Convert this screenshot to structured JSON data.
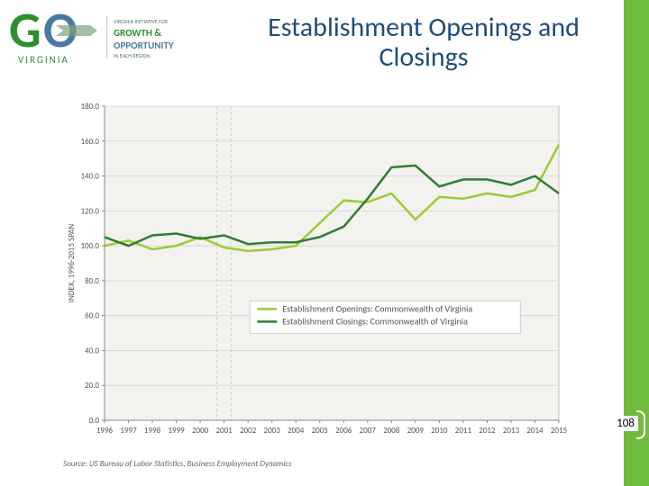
{
  "title": "Establishment Openings and Closings",
  "page_number": "108",
  "logo": {
    "go_g": "G",
    "go_o": "O",
    "sub": "VIRGINIA",
    "tag_top": "VIRGINIA INITIATIVE FOR",
    "growth": "GROWTH &",
    "opp": "OPPORTUNITY",
    "tag_bot": "IN EACH REGION"
  },
  "chart": {
    "type": "line",
    "background_color": "#f3f2ef",
    "plot_border_color": "#bfbfbf",
    "grid_color": "#d9d9d9",
    "recession_band_x": 2001,
    "recession_band_color": "#cfcfcf",
    "ylim": [
      0,
      180
    ],
    "ytick_step": 20,
    "yticks": [
      "0.0",
      "20.0",
      "40.0",
      "60.0",
      "80.0",
      "100.0",
      "120.0",
      "140.0",
      "160.0",
      "180.0"
    ],
    "x_categories": [
      "1996",
      "1997",
      "1998",
      "1999",
      "2000",
      "2001",
      "2002",
      "2003",
      "2004",
      "2005",
      "2006",
      "2007",
      "2008",
      "2009",
      "2010",
      "2011",
      "2012",
      "2013",
      "2014",
      "2015"
    ],
    "ylabel": "INDEX, 1996-2015 SPAN",
    "series": [
      {
        "name": "Establishment Openings: Commonwealth of Virginia",
        "color": "#9acd32",
        "width": 2.5,
        "values": [
          100,
          103,
          98,
          100,
          105,
          99,
          97,
          98,
          100,
          113,
          126,
          125,
          130,
          115,
          128,
          127,
          130,
          128,
          132,
          158
        ]
      },
      {
        "name": "Establishment Closings: Commonwealth of Virginia",
        "color": "#2e7d32",
        "width": 2.5,
        "values": [
          105,
          100,
          106,
          107,
          104,
          106,
          101,
          102,
          102,
          105,
          111,
          127,
          145,
          146,
          134,
          138,
          138,
          135,
          140,
          130
        ]
      }
    ],
    "source": "Source: US Bureau of Labor Statistics, Business Employment Dynamics",
    "label_fontsize": 9
  },
  "colors": {
    "right_bar": "#6fbb3c",
    "title": "#1f4e79"
  }
}
